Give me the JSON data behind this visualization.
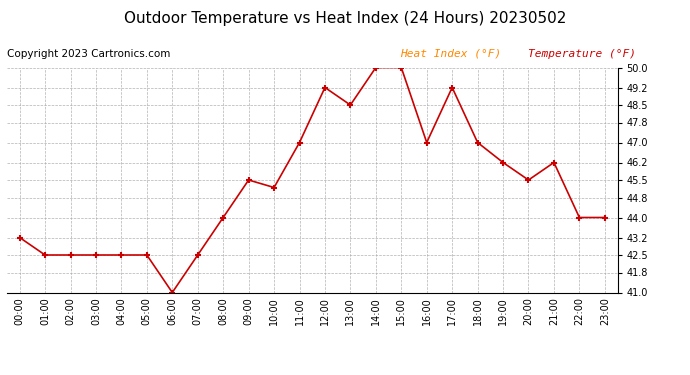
{
  "title": "Outdoor Temperature vs Heat Index (24 Hours) 20230502",
  "copyright": "Copyright 2023 Cartronics.com",
  "legend_heat_index": "Heat Index (°F)",
  "legend_temperature": "Temperature (°F)",
  "x_labels": [
    "00:00",
    "01:00",
    "02:00",
    "03:00",
    "04:00",
    "05:00",
    "06:00",
    "07:00",
    "08:00",
    "09:00",
    "10:00",
    "11:00",
    "12:00",
    "13:00",
    "14:00",
    "15:00",
    "16:00",
    "17:00",
    "18:00",
    "19:00",
    "20:00",
    "21:00",
    "22:00",
    "23:00"
  ],
  "temperature_values": [
    43.2,
    42.5,
    42.5,
    42.5,
    42.5,
    42.5,
    41.0,
    42.5,
    44.0,
    45.5,
    45.2,
    47.0,
    49.2,
    48.5,
    50.0,
    50.0,
    47.0,
    49.2,
    47.0,
    46.2,
    45.5,
    46.2,
    44.0,
    44.0
  ],
  "line_color": "#cc0000",
  "marker": "+",
  "marker_size": 5,
  "marker_edge_width": 1.5,
  "line_width": 1.2,
  "ylim": [
    41.0,
    50.0
  ],
  "yticks": [
    41.0,
    41.8,
    42.5,
    43.2,
    44.0,
    44.8,
    45.5,
    46.2,
    47.0,
    47.8,
    48.5,
    49.2,
    50.0
  ],
  "background_color": "#ffffff",
  "grid_color": "#aaaaaa",
  "title_color": "#000000",
  "title_fontsize": 11,
  "copyright_color": "#000000",
  "copyright_fontsize": 7.5,
  "legend_heat_index_color": "#ff8800",
  "legend_temperature_color": "#cc0000",
  "legend_fontsize": 8,
  "tick_fontsize": 7,
  "xtick_fontsize": 7
}
